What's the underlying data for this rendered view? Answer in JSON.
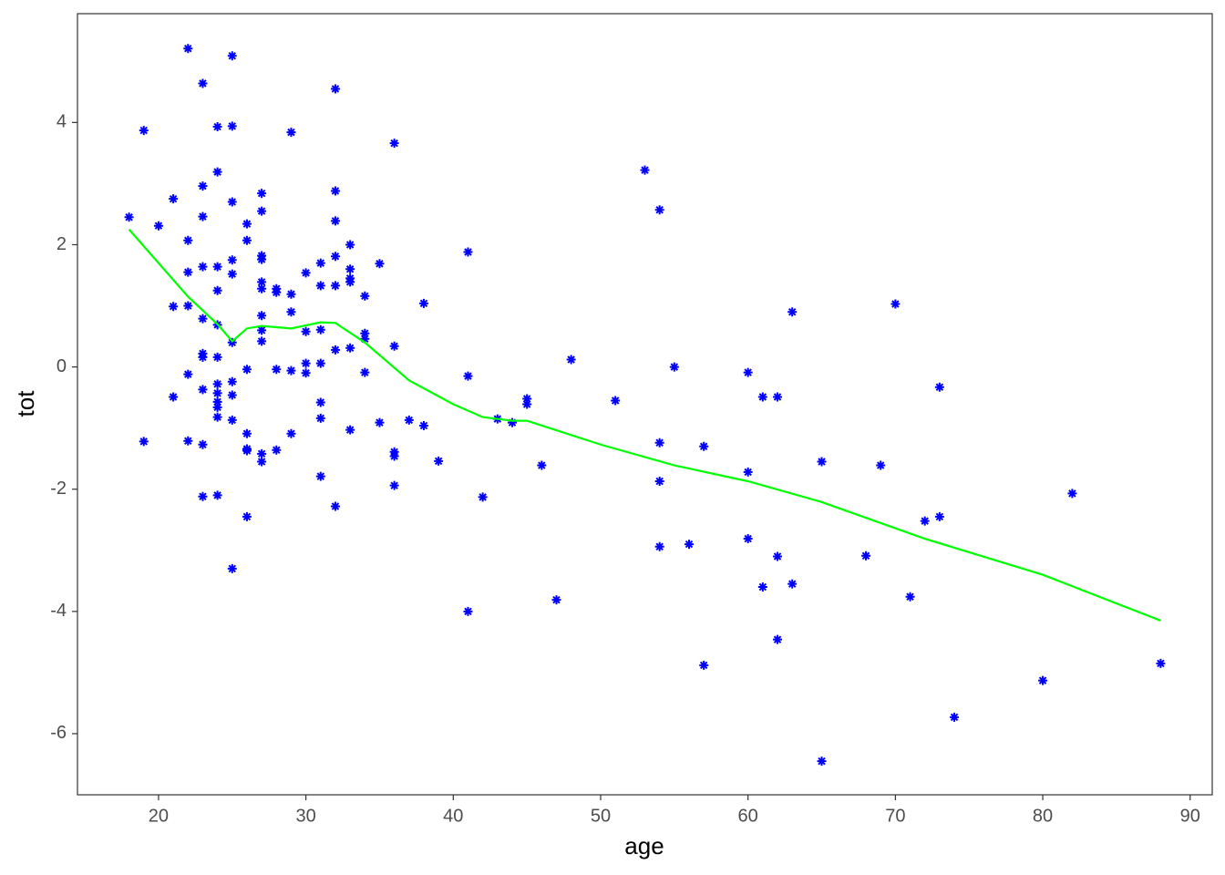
{
  "chart_data": {
    "type": "scatter",
    "x_label": "age",
    "y_label": "tot",
    "xlim": [
      14.5,
      91.5
    ],
    "ylim": [
      -7.0,
      5.78
    ],
    "xticks": [
      20,
      30,
      40,
      50,
      60,
      70,
      80,
      90
    ],
    "yticks": [
      -6,
      -4,
      -2,
      0,
      2,
      4
    ],
    "grid": false,
    "color": "#0000ff",
    "x": [
      18,
      19,
      19,
      20,
      21,
      21,
      21,
      22,
      22,
      22,
      22,
      22,
      22,
      23,
      23,
      23,
      23,
      23,
      23,
      23,
      23,
      23,
      23,
      24,
      24,
      24,
      24,
      24,
      24,
      24,
      24,
      24,
      24,
      24,
      24,
      25,
      25,
      25,
      25,
      25,
      25,
      25,
      25,
      25,
      25,
      26,
      26,
      26,
      26,
      26,
      26,
      26,
      27,
      27,
      27,
      27,
      27,
      27,
      27,
      27,
      27,
      27,
      27,
      28,
      28,
      28,
      28,
      29,
      29,
      29,
      29,
      29,
      30,
      30,
      30,
      30,
      31,
      31,
      31,
      31,
      31,
      31,
      31,
      32,
      32,
      32,
      32,
      32,
      32,
      32,
      33,
      33,
      33,
      33,
      33,
      33,
      34,
      34,
      34,
      34,
      35,
      35,
      36,
      36,
      36,
      36,
      36,
      37,
      38,
      38,
      39,
      41,
      41,
      41,
      42,
      43,
      44,
      45,
      45,
      46,
      47,
      48,
      51,
      53,
      54,
      54,
      54,
      54,
      55,
      56,
      57,
      57,
      60,
      60,
      60,
      61,
      61,
      62,
      62,
      62,
      63,
      63,
      65,
      65,
      68,
      69,
      70,
      71,
      72,
      73,
      73,
      74,
      80,
      82,
      88
    ],
    "y": [
      2.45,
      3.87,
      -1.22,
      2.31,
      2.75,
      0.99,
      -0.49,
      5.21,
      2.07,
      1.55,
      1.0,
      -0.12,
      -1.21,
      4.64,
      2.96,
      2.46,
      1.64,
      0.79,
      0.22,
      0.16,
      -0.37,
      -1.27,
      -2.12,
      3.93,
      3.19,
      1.64,
      1.25,
      0.69,
      0.16,
      -0.28,
      -0.43,
      -0.57,
      -0.66,
      -0.82,
      -2.1,
      5.09,
      3.94,
      2.7,
      1.75,
      1.52,
      0.4,
      -0.24,
      -0.46,
      -0.87,
      -3.3,
      2.34,
      2.07,
      -0.04,
      -1.09,
      -1.34,
      -1.37,
      -2.45,
      2.84,
      2.55,
      1.82,
      1.76,
      1.39,
      1.28,
      0.84,
      0.6,
      0.42,
      -1.42,
      -1.55,
      1.28,
      1.22,
      -0.04,
      -1.36,
      3.84,
      1.19,
      0.9,
      -0.06,
      -1.09,
      1.54,
      0.58,
      0.06,
      -0.1,
      1.7,
      1.33,
      0.61,
      0.06,
      -0.58,
      -0.84,
      -1.79,
      4.55,
      2.88,
      2.39,
      1.81,
      1.33,
      0.28,
      -2.28,
      2.0,
      1.6,
      1.45,
      1.39,
      0.31,
      -1.03,
      1.16,
      0.55,
      0.46,
      -0.09,
      1.69,
      -0.91,
      3.66,
      0.34,
      -1.39,
      -1.46,
      -1.94,
      -0.87,
      1.04,
      -0.96,
      -1.54,
      1.88,
      -0.15,
      -4.0,
      -2.13,
      -0.85,
      -0.91,
      -0.52,
      -0.61,
      -1.61,
      -3.81,
      0.12,
      -0.55,
      3.22,
      2.57,
      -1.24,
      -1.87,
      -2.94,
      0.0,
      -2.9,
      -1.3,
      -4.88,
      -0.09,
      -1.72,
      -2.81,
      -0.49,
      -3.6,
      -0.49,
      -3.1,
      -4.46,
      0.9,
      -3.55,
      -1.55,
      -6.45,
      -3.09,
      -1.61,
      1.03,
      -3.76,
      -2.52,
      -0.33,
      -2.45,
      -5.73,
      -5.13,
      -2.07,
      -4.85
    ],
    "line": {
      "color": "#00ff00",
      "x": [
        18,
        22,
        24,
        25,
        26,
        27,
        29,
        31,
        32,
        34,
        37,
        40,
        42,
        44,
        45,
        50,
        55,
        60,
        65,
        72,
        80,
        88
      ],
      "y": [
        2.25,
        1.15,
        0.7,
        0.42,
        0.63,
        0.67,
        0.63,
        0.73,
        0.72,
        0.4,
        -0.22,
        -0.61,
        -0.82,
        -0.88,
        -0.88,
        -1.27,
        -1.61,
        -1.87,
        -2.21,
        -2.81,
        -3.4,
        -4.15
      ]
    }
  }
}
